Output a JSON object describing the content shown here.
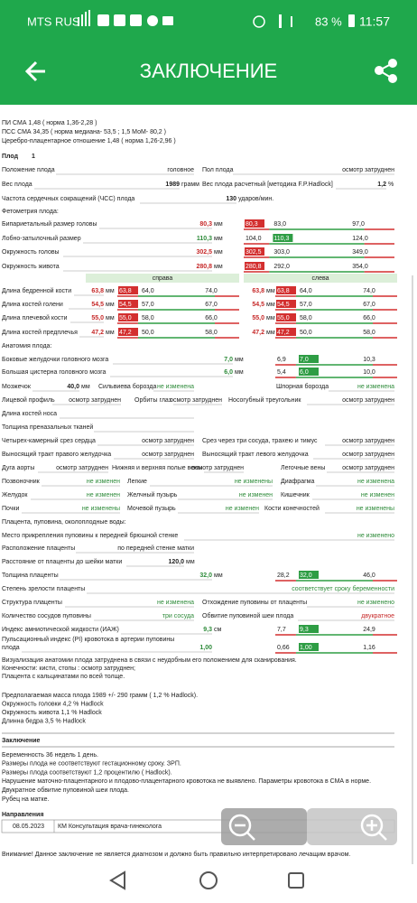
{
  "status_bar": {
    "carrier": "MTS RUS",
    "battery": "83 %",
    "time": "11:57"
  },
  "app_bar": {
    "title": "ЗАКЛЮЧЕНИЕ"
  },
  "doppler": [
    "ПИ СМА 1,48   ( норма 1,36-2,28 )",
    "ПСС СМА 34,35 ( норма медиана- 53,5 ; 1,5 МоМ- 80,2 )",
    "Церебро-плацентарное отношение 1,48 ( норма 1,26-2,96 )"
  ],
  "fetus": {
    "label": "Плод",
    "number": "1"
  },
  "lines": [
    {
      "cells": [
        {
          "text": "Положение плода"
        },
        {
          "text": "головное"
        },
        {
          "text": "Пол плода"
        },
        {
          "text": "осмотр затруднен"
        }
      ]
    },
    {
      "cells": [
        {
          "text": "Вес плода"
        },
        {
          "text": "1989",
          "style": "bold"
        },
        {
          "text": "грамм"
        },
        {
          "text": "Вес плода расчетный [методика F.P.Hadlock]"
        },
        {
          "text": "1,2",
          "style": "bold"
        },
        {
          "text": "%"
        }
      ]
    },
    {
      "cells": [
        {
          "text": "Частота сердечных сокращений (ЧСС) плода"
        },
        {
          "text": "130",
          "style": "bold"
        },
        {
          "text": "ударов/мин."
        }
      ]
    },
    {
      "cells": [
        {
          "text": "Фетометрия плода:"
        }
      ]
    },
    {
      "cells": [
        {
          "text": "Бипариетальный размер головы"
        },
        {
          "text": "80,3",
          "style": "red-bold"
        },
        {
          "text": "мм"
        }
      ],
      "gauges": [
        {
          "items": [
            {
              "text": "80,3",
              "box": "red"
            },
            {
              "text": "83,0"
            },
            {
              "text": "97,0"
            }
          ]
        }
      ]
    },
    {
      "cells": [
        {
          "text": "Лобно-затылочный размер"
        },
        {
          "text": "110,3",
          "style": "green-bold"
        },
        {
          "text": "мм"
        }
      ],
      "gauges": [
        {
          "items": [
            {
              "text": "104,0"
            },
            {
              "text": "110,3",
              "box": "green"
            },
            {
              "text": "124,0"
            }
          ]
        }
      ]
    },
    {
      "cells": [
        {
          "text": "Окружность головы"
        },
        {
          "text": "302,5",
          "style": "red-bold"
        },
        {
          "text": "мм"
        }
      ],
      "gauges": [
        {
          "items": [
            {
              "text": "302,5",
              "box": "red"
            },
            {
              "text": "303,0"
            },
            {
              "text": "349,0"
            }
          ]
        }
      ]
    },
    {
      "cells": [
        {
          "text": "Окружность живота"
        },
        {
          "text": "280,8",
          "style": "red-bold"
        },
        {
          "text": "мм"
        }
      ],
      "gauges": [
        {
          "items": [
            {
              "text": "280,8",
              "box": "red"
            },
            {
              "text": "292,0"
            },
            {
              "text": "354,0"
            }
          ]
        }
      ]
    },
    {
      "cells": [
        {
          "text": "справа"
        },
        {
          "text": "слева"
        }
      ]
    },
    {
      "cells": [
        {
          "text": "Длина бедренной кости"
        },
        {
          "text": "63,8",
          "style": "red-bold"
        },
        {
          "text": "мм"
        },
        {
          "text": "63,8",
          "style": "red-bold"
        },
        {
          "text": "мм"
        }
      ],
      "gauges": [
        {
          "items": [
            {
              "text": "63,8",
              "box": "red"
            },
            {
              "text": "64,0"
            },
            {
              "text": "74,0"
            }
          ]
        },
        {
          "items": [
            {
              "text": "63,8",
              "box": "red"
            },
            {
              "text": "64,0"
            },
            {
              "text": "74,0"
            }
          ]
        }
      ]
    },
    {
      "cells": [
        {
          "text": "Длина костей голени"
        },
        {
          "text": "54,5",
          "style": "red-bold"
        },
        {
          "text": "мм"
        },
        {
          "text": "54,5",
          "style": "red-bold"
        },
        {
          "text": "мм"
        }
      ],
      "gauges": [
        {
          "items": [
            {
              "text": "54,5",
              "box": "red"
            },
            {
              "text": "57,0"
            },
            {
              "text": "67,0"
            }
          ]
        },
        {
          "items": [
            {
              "text": "54,5",
              "box": "red"
            },
            {
              "text": "57,0"
            },
            {
              "text": "67,0"
            }
          ]
        }
      ]
    },
    {
      "cells": [
        {
          "text": "Длина плечевой кости"
        },
        {
          "text": "55,0",
          "style": "red-bold"
        },
        {
          "text": "мм"
        },
        {
          "text": "55,0",
          "style": "red-bold"
        },
        {
          "text": "мм"
        }
      ],
      "gauges": [
        {
          "items": [
            {
              "text": "55,0",
              "box": "red"
            },
            {
              "text": "58,0"
            },
            {
              "text": "66,0"
            }
          ]
        },
        {
          "items": [
            {
              "text": "55,0",
              "box": "red"
            },
            {
              "text": "58,0"
            },
            {
              "text": "66,0"
            }
          ]
        }
      ]
    },
    {
      "cells": [
        {
          "text": "Длина костей предплечья"
        },
        {
          "text": "47,2",
          "style": "red-bold"
        },
        {
          "text": "мм"
        },
        {
          "text": "47,2",
          "style": "red-bold"
        },
        {
          "text": "мм"
        }
      ],
      "gauges": [
        {
          "items": [
            {
              "text": "47,2",
              "box": "red"
            },
            {
              "text": "50,0"
            },
            {
              "text": "58,0"
            }
          ]
        },
        {
          "items": [
            {
              "text": "47,2",
              "box": "red"
            },
            {
              "text": "50,0"
            },
            {
              "text": "58,0"
            }
          ]
        }
      ]
    },
    {
      "cells": [
        {
          "text": "Анатомия плода:"
        }
      ]
    },
    {
      "cells": [
        {
          "text": "Боковые желудочки головного мозга"
        },
        {
          "text": "7,0",
          "style": "green-bold"
        },
        {
          "text": "мм"
        }
      ],
      "gauges": [
        {
          "items": [
            {
              "text": "6,9"
            },
            {
              "text": "7,0",
              "box": "green"
            },
            {
              "text": "10,3"
            }
          ]
        }
      ]
    },
    {
      "cells": [
        {
          "text": "Большая цистерна головного мозга"
        },
        {
          "text": "6,0",
          "style": "green-bold"
        },
        {
          "text": "мм"
        }
      ],
      "gauges": [
        {
          "items": [
            {
              "text": "5,4"
            },
            {
              "text": "6,0",
              "box": "green"
            },
            {
              "text": "10,0"
            }
          ]
        }
      ]
    },
    {
      "cells": [
        {
          "text": "Мозжечок"
        },
        {
          "text": "40,0",
          "style": "bold"
        },
        {
          "text": "мм"
        },
        {
          "text": "Сильвиева борозда"
        },
        {
          "text": "не изменена",
          "style": "green"
        },
        {
          "text": "Шпорная борозда"
        },
        {
          "text": "не изменена",
          "style": "green"
        }
      ]
    },
    {
      "cells": [
        {
          "text": "Лицевой профиль"
        },
        {
          "text": "осмотр затруднен"
        },
        {
          "text": "Орбиты глаз"
        },
        {
          "text": "осмотр затруднен"
        },
        {
          "text": "Носогубный треугольник"
        },
        {
          "text": "осмотр затруднен"
        }
      ]
    },
    {
      "cells": [
        {
          "text": "Длина костей носа"
        }
      ]
    },
    {
      "cells": [
        {
          "text": "Толщина преназальных тканей"
        }
      ]
    },
    {
      "cells": [
        {
          "text": "Четырех-камерный срез сердца"
        },
        {
          "text": "осмотр затруднен"
        },
        {
          "text": "Срез через три сосуда, трахею и тимус"
        },
        {
          "text": "осмотр затруднен"
        }
      ]
    },
    {
      "cells": [
        {
          "text": "Выносящий тракт правого желудочка"
        },
        {
          "text": "осмотр затруднен"
        },
        {
          "text": "Выносящий тракт левого желудочка"
        },
        {
          "text": "осмотр затруднен"
        }
      ]
    },
    {
      "cells": [
        {
          "text": "Дуга аорты"
        },
        {
          "text": "осмотр затруднен"
        },
        {
          "text": "Нижняя и верхняя полые вены"
        },
        {
          "text": "осмотр затруднен"
        },
        {
          "text": "Легочные вены"
        },
        {
          "text": "осмотр затруднен"
        }
      ]
    },
    {
      "cells": [
        {
          "text": "Позвоночник"
        },
        {
          "text": "не изменен",
          "style": "green"
        },
        {
          "text": "Легкие"
        },
        {
          "text": "не изменены",
          "style": "green"
        },
        {
          "text": "Диафрагма"
        },
        {
          "text": "не изменена",
          "style": "green"
        }
      ]
    },
    {
      "cells": [
        {
          "text": "Желудок"
        },
        {
          "text": "не изменен",
          "style": "green"
        },
        {
          "text": "Желчный пузырь"
        },
        {
          "text": "не изменен",
          "style": "green"
        },
        {
          "text": "Кишечник"
        },
        {
          "text": "не изменен",
          "style": "green"
        }
      ]
    },
    {
      "cells": [
        {
          "text": "Почки"
        },
        {
          "text": "не изменены",
          "style": "green"
        },
        {
          "text": "Мочевой пузырь"
        },
        {
          "text": "не изменен",
          "style": "green"
        },
        {
          "text": "Кости конечностей"
        },
        {
          "text": "не изменены",
          "style": "green"
        }
      ]
    },
    {
      "cells": [
        {
          "text": "Плацента, пуповина, околоплодные воды:"
        }
      ]
    },
    {
      "cells": [
        {
          "text": "Место прикрепления пуповины к передней брюшной стенке"
        },
        {
          "text": "не изменено",
          "style": "green"
        }
      ]
    },
    {
      "cells": [
        {
          "text": "Расположение плаценты"
        },
        {
          "text": "по передней стенке матки"
        }
      ]
    },
    {
      "cells": [
        {
          "text": "Расстояние от плаценты до шейки матки"
        },
        {
          "text": "120,0",
          "style": "bold"
        },
        {
          "text": "мм"
        }
      ]
    },
    {
      "cells": [
        {
          "text": "Толщина плаценты"
        },
        {
          "text": "32,0",
          "style": "green-bold"
        },
        {
          "text": "мм"
        }
      ],
      "gauges": [
        {
          "items": [
            {
              "text": "28,2"
            },
            {
              "text": "32,0",
              "box": "green"
            },
            {
              "text": "46,0"
            }
          ]
        }
      ]
    },
    {
      "cells": [
        {
          "text": "Степень зрелости плаценты"
        },
        {
          "text": "соответствует сроку беременности",
          "style": "green"
        }
      ]
    },
    {
      "cells": [
        {
          "text": "Структура плаценты"
        },
        {
          "text": "не изменена",
          "style": "green"
        },
        {
          "text": "Отхождение пуповины от плаценты"
        },
        {
          "text": "не изменено",
          "style": "green"
        }
      ]
    },
    {
      "cells": [
        {
          "text": "Количество сосудов пуповины"
        },
        {
          "text": "три сосуда",
          "style": "green"
        },
        {
          "text": "Обвитие пуповиной шеи плода"
        },
        {
          "text": "двукратное",
          "style": "red"
        }
      ]
    },
    {
      "cells": [
        {
          "text": "Индекс амниотической жидкости (ИАЖ)"
        },
        {
          "text": "9,3",
          "style": "green-bold"
        },
        {
          "text": "см"
        }
      ],
      "gauges": [
        {
          "items": [
            {
              "text": "7,7"
            },
            {
              "text": "9,3",
              "box": "green"
            },
            {
              "text": "24,9"
            }
          ]
        }
      ]
    },
    {
      "cells": [
        {
          "text": "Пульсационный индекс (PI) кровотока в артерии пуповины"
        }
      ]
    },
    {
      "cells": [
        {
          "text": "плода"
        },
        {
          "text": "1,00",
          "style": "green-bold"
        }
      ],
      "gauges": [
        {
          "items": [
            {
              "text": "0,66"
            },
            {
              "text": "1,00",
              "box": "green"
            },
            {
              "text": "1,16"
            }
          ]
        }
      ]
    }
  ],
  "notes": [
    "Визуализация анатомии плода затруднена в связи с неудобным его положением для сканирования.",
    "Конечности: кисти, стопы : осмотр затруднен;",
    "Плацента с  кальцинатами по всей толще."
  ],
  "estimates": [
    "Предполагаемая  масса плода  1989 +/-  290 грамм ( 1,2 % Hadlock).",
    "Окружность головки  4,2  % Hadlock",
    "Окружность живота 1,1  % Hadlock",
    "Длинна бедра  3,5 % Hadlock"
  ],
  "conclusion": {
    "title": "Заключение",
    "lines": [
      "Беременность 36 недель  1 день.",
      "Размеры плода не соответствуют гестационному сроку. ЗРП.",
      "Размеры плода соответствуют  1,2 процентилю ( Hadlock).",
      "Нарушение маточно-плацентарного и плодово-плацентарного кровотока не выявлено. Параметры кровотока в СМА в норме.",
      "Двукратное обвитие пуповиной шеи плода.",
      "Рубец на матке."
    ]
  },
  "referrals": {
    "title": "Направления",
    "rows": [
      [
        "08.05.2023",
        "КМ Консультация врача-гинеколога"
      ]
    ]
  },
  "warning": "Внимание! Данное заключение не является диагнозом и должно быть правильно интерпретировано лечащим врачом."
}
